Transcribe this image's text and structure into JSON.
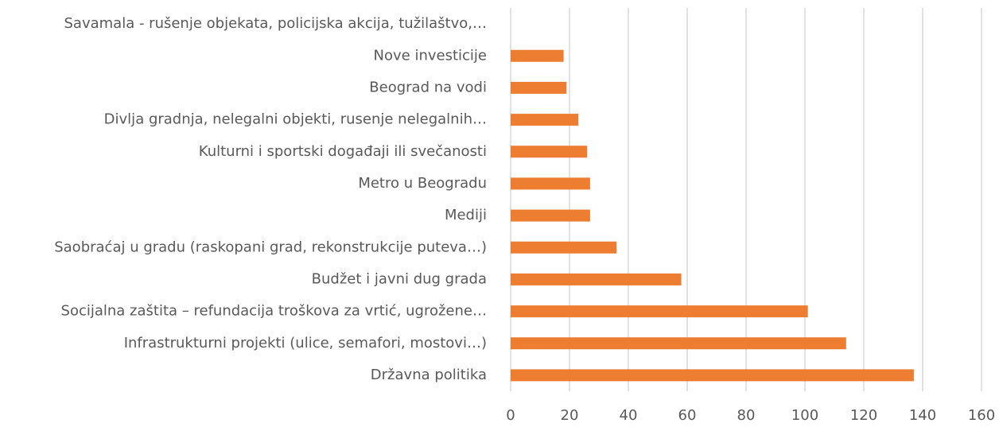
{
  "chart_data": {
    "type": "barh",
    "categories": [
      "Savamala - rušenje objekata, policijska akcija, tužilaštvo,…",
      "Nove investicije",
      "Beograd na vodi",
      "Divlja gradnja, nelegalni objekti, rusenje nelegalnih…",
      "Kulturni i sportski događaji ili svečanosti",
      "Metro u Beogradu",
      "Mediji",
      "Saobraćaj u gradu (raskopani grad, rekonstrukcije puteva…)",
      "Budžet i javni dug grada",
      "Socijalna zaštita – refundacija troškova za vrtić, ugrožene…",
      "Infrastrukturni projekti (ulice, semafori, mostovi…)",
      "Državna politika"
    ],
    "values": [
      0,
      18,
      19,
      23,
      26,
      27,
      27,
      36,
      58,
      101,
      114,
      137
    ],
    "color": "#ed7d31",
    "xlim": [
      0,
      160
    ],
    "xticks": [
      0,
      20,
      40,
      60,
      80,
      100,
      120,
      140,
      160
    ],
    "grid": true
  }
}
